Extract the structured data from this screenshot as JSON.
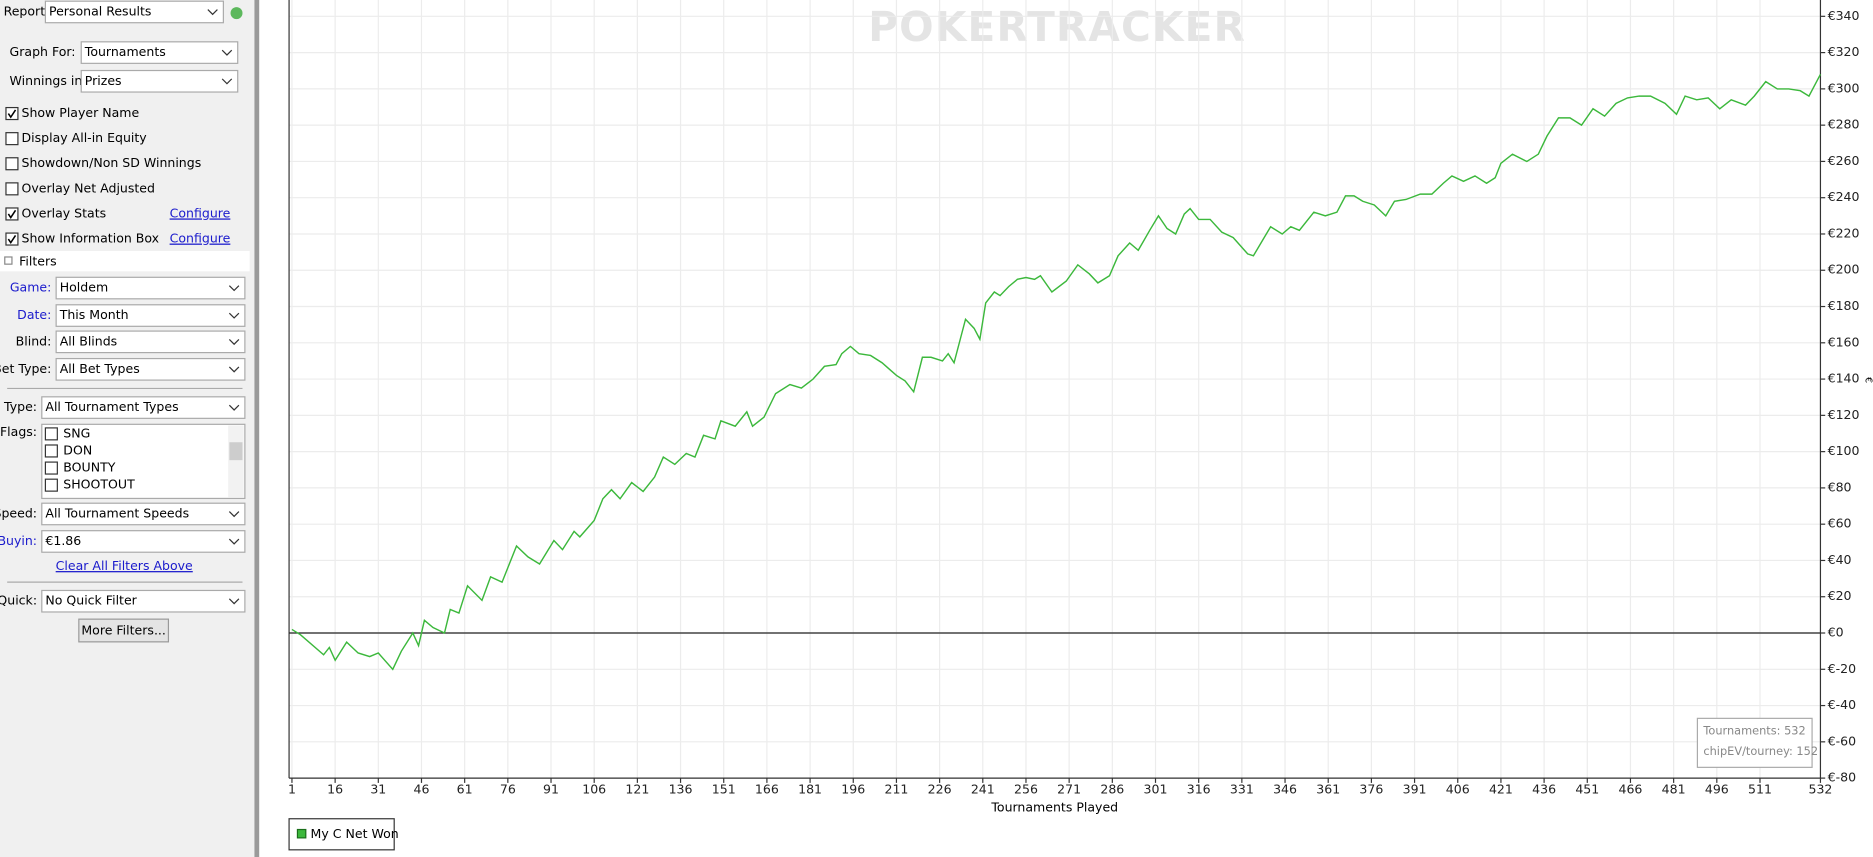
{
  "sidebar": {
    "report": {
      "label": "Report:",
      "value": "Personal Results"
    },
    "graph_for": {
      "label": "Graph For:",
      "value": "Tournaments"
    },
    "winnings_in": {
      "label": "Winnings in:",
      "value": "Prizes"
    },
    "options": [
      {
        "label": "Show Player Name",
        "checked": true
      },
      {
        "label": "Display All-in Equity",
        "checked": false
      },
      {
        "label": "Showdown/Non SD Winnings",
        "checked": false
      },
      {
        "label": "Overlay Net Adjusted",
        "checked": false
      },
      {
        "label": "Overlay Stats",
        "checked": true,
        "link": "Configure"
      },
      {
        "label": "Show Information Box",
        "checked": true,
        "link": "Configure"
      }
    ],
    "filters_title": "Filters",
    "game": {
      "label": "Game:",
      "value": "Holdem"
    },
    "date": {
      "label": "Date:",
      "value": "This Month"
    },
    "blind": {
      "label": "Blind:",
      "value": "All Blinds"
    },
    "bet_type": {
      "label": "Bet Type:",
      "value": "All Bet Types"
    },
    "type": {
      "label": "Type:",
      "value": "All Tournament Types"
    },
    "flags": {
      "label": "Flags:",
      "items": [
        "SNG",
        "DON",
        "BOUNTY",
        "SHOOTOUT"
      ]
    },
    "speed": {
      "label": "Speed:",
      "value": "All Tournament Speeds"
    },
    "buyin": {
      "label": "Buyin:",
      "value": "€1.86"
    },
    "clear_filters": "Clear All Filters Above",
    "quick": {
      "label": "Quick:",
      "value": "No Quick Filter"
    },
    "more_filters": "More Filters..."
  },
  "chart_data": {
    "type": "line",
    "watermark": "POKERTRACKER",
    "x_label": "Tournaments Played",
    "y_label": "€",
    "xlim": [
      0,
      532
    ],
    "ylim": [
      -80,
      349
    ],
    "xticks": [
      1,
      16,
      31,
      46,
      61,
      76,
      91,
      106,
      121,
      136,
      151,
      166,
      181,
      196,
      211,
      226,
      241,
      256,
      271,
      286,
      301,
      316,
      331,
      346,
      361,
      376,
      391,
      406,
      421,
      436,
      451,
      466,
      481,
      496,
      511,
      532
    ],
    "yticks": [
      {
        "value": -80,
        "label": "€-80"
      },
      {
        "value": -60,
        "label": "€-60"
      },
      {
        "value": -40,
        "label": "€-40"
      },
      {
        "value": -20,
        "label": "€-20"
      },
      {
        "value": 0,
        "label": "€0"
      },
      {
        "value": 20,
        "label": "€20"
      },
      {
        "value": 40,
        "label": "€40"
      },
      {
        "value": 60,
        "label": "€60"
      },
      {
        "value": 80,
        "label": "€80"
      },
      {
        "value": 100,
        "label": "€100"
      },
      {
        "value": 120,
        "label": "€120"
      },
      {
        "value": 140,
        "label": "€140"
      },
      {
        "value": 160,
        "label": "€160"
      },
      {
        "value": 180,
        "label": "€180"
      },
      {
        "value": 200,
        "label": "€200"
      },
      {
        "value": 220,
        "label": "€220"
      },
      {
        "value": 240,
        "label": "€240"
      },
      {
        "value": 260,
        "label": "€260"
      },
      {
        "value": 280,
        "label": "€280"
      },
      {
        "value": 300,
        "label": "€300"
      },
      {
        "value": 320,
        "label": "€320"
      },
      {
        "value": 340,
        "label": "€340"
      }
    ],
    "grid": true,
    "x": [
      1,
      4,
      12,
      14,
      16,
      20,
      24,
      28,
      31,
      36,
      39,
      43,
      45,
      47,
      50,
      54,
      56,
      59,
      62,
      67,
      70,
      74,
      79,
      83,
      87,
      92,
      95,
      99,
      101,
      106,
      109,
      112,
      115,
      119,
      123,
      127,
      130,
      134,
      138,
      141,
      144,
      148,
      150,
      155,
      159,
      161,
      165,
      169,
      174,
      178,
      182,
      186,
      190,
      192,
      195,
      198,
      202,
      206,
      211,
      214,
      217,
      220,
      223,
      227,
      229,
      231,
      235,
      238,
      240,
      242,
      245,
      247,
      250,
      253,
      256,
      259,
      261,
      265,
      270,
      274,
      278,
      281,
      285,
      288,
      292,
      295,
      299,
      302,
      305,
      308,
      311,
      313,
      316,
      320,
      324,
      328,
      333,
      335,
      338,
      341,
      345,
      348,
      351,
      356,
      360,
      364,
      367,
      370,
      373,
      377,
      381,
      384,
      388,
      393,
      397,
      401,
      404,
      408,
      412,
      416,
      419,
      421,
      425,
      430,
      434,
      437,
      441,
      445,
      449,
      453,
      457,
      461,
      465,
      469,
      473,
      478,
      482,
      485,
      489,
      493,
      497,
      501,
      506,
      509,
      513,
      517,
      521,
      525,
      528,
      532
    ],
    "series": [
      {
        "name": "My C Net Won",
        "color": "#3cb83c",
        "values": [
          2,
          -1,
          -12,
          -8,
          -15,
          -5,
          -11,
          -13,
          -11,
          -20,
          -10,
          0,
          -7,
          7,
          3,
          0,
          13,
          11,
          26,
          18,
          31,
          28,
          48,
          42,
          38,
          51,
          46,
          56,
          53,
          62,
          74,
          79,
          74,
          83,
          78,
          86,
          97,
          93,
          99,
          97,
          109,
          107,
          117,
          114,
          122,
          114,
          119,
          132,
          137,
          135,
          140,
          147,
          148,
          154,
          158,
          154,
          153,
          149,
          142,
          139,
          133,
          152,
          152,
          150,
          154,
          149,
          173,
          168,
          162,
          182,
          188,
          186,
          191,
          195,
          196,
          195,
          197,
          188,
          194,
          203,
          198,
          193,
          197,
          208,
          215,
          211,
          222,
          230,
          223,
          220,
          231,
          234,
          228,
          228,
          221,
          218,
          209,
          208,
          216,
          224,
          220,
          224,
          222,
          232,
          230,
          232,
          241,
          241,
          238,
          236,
          230,
          238,
          239,
          242,
          242,
          248,
          252,
          249,
          252,
          248,
          251,
          259,
          264,
          260,
          264,
          274,
          284,
          284,
          280,
          289,
          285,
          292,
          295,
          296,
          296,
          292,
          286,
          296,
          294,
          295,
          289,
          294,
          291,
          296,
          304,
          300,
          300,
          299,
          296,
          308
        ]
      }
    ],
    "info_box": [
      "Tournaments: 532",
      "chipEV/tourney: 152"
    ]
  }
}
